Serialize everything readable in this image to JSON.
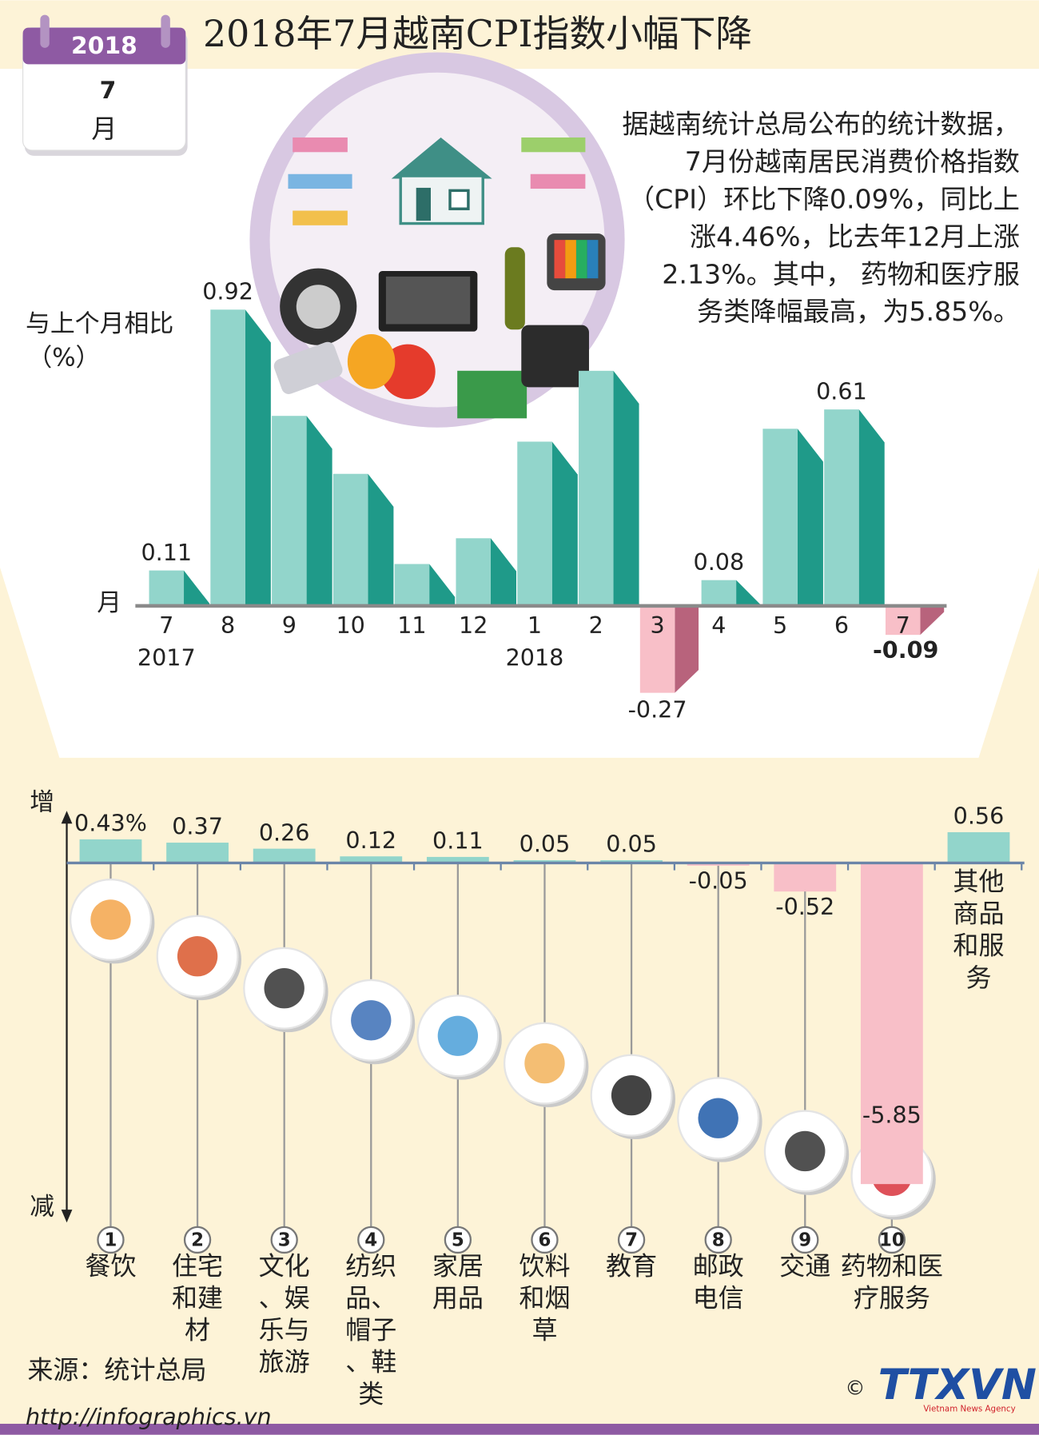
{
  "header": {
    "title": "2018年7月越南CPI指数小幅下降"
  },
  "calendar": {
    "year": "2018",
    "day": "7",
    "month": "月"
  },
  "intro_lines": [
    "据越南统计总局公布的统计数据，",
    "7月份越南居民消费价格指数",
    "（CPI）环比下降0.09%，同比上",
    "涨4.46%，比去年12月上涨",
    "2.13%。其中， 药物和医疗服",
    "务类降幅最高，为5.85%。"
  ],
  "chart_data": [
    {
      "type": "bar",
      "y_label": [
        "与上个月相比",
        "（%）"
      ],
      "x_label": "月",
      "categories": [
        "7",
        "8",
        "9",
        "10",
        "11",
        "12",
        "1",
        "2",
        "3",
        "4",
        "5",
        "6",
        "7"
      ],
      "year_labels": [
        "2017",
        null,
        null,
        null,
        null,
        null,
        "2018",
        null,
        null,
        null,
        null,
        null,
        null
      ],
      "values": [
        0.11,
        0.92,
        0.59,
        0.41,
        0.13,
        0.21,
        0.51,
        0.73,
        -0.27,
        0.08,
        0.55,
        0.61,
        -0.09
      ],
      "value_labels": [
        "0.11",
        "0.92",
        null,
        null,
        null,
        null,
        null,
        null,
        "-0.27",
        "0.08",
        null,
        "0.61",
        "-0.09"
      ],
      "color": "#92d5cb",
      "side_color": "#1f9a89",
      "negative_color": "#f8bfc8",
      "negative_side_color": "#b8637c"
    },
    {
      "type": "bar",
      "up_label": "增",
      "down_label": "减",
      "numbers": [
        "1",
        "2",
        "3",
        "4",
        "5",
        "6",
        "7",
        "8",
        "9",
        "10",
        null
      ],
      "categories": [
        "餐饮",
        "住宅和建材",
        "文化、娱乐与旅游",
        "纺织品、帽子、鞋类",
        "家居用品",
        "饮料和烟草",
        "教育",
        "邮政电信",
        "交通",
        "药物和医疗服务",
        "其他商品和服务"
      ],
      "values": [
        0.43,
        0.37,
        0.26,
        0.12,
        0.11,
        0.05,
        0.05,
        -0.05,
        -0.52,
        -5.85,
        0.56
      ],
      "value_labels": [
        "0.43%",
        "0.37",
        "0.26",
        "0.12",
        "0.11",
        "0.05",
        "0.05",
        "-0.05",
        "-0.52",
        "-5.85",
        "0.56"
      ],
      "color": "#92d5cb",
      "negative_color": "#f8bfc8"
    }
  ],
  "footer": {
    "source": "来源：统计总局",
    "url": "http://infographics.vn",
    "copyright": "©",
    "logo": "TTXVN",
    "agency": "Vietnam News Agency"
  }
}
